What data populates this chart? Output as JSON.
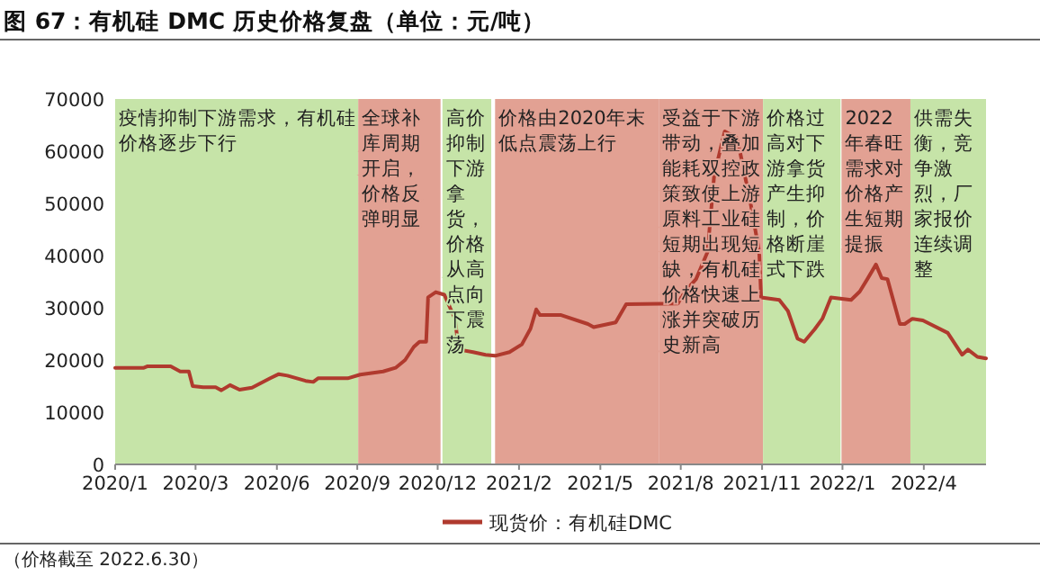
{
  "chart_data": {
    "type": "line",
    "title": "图 67：有机硅 DMC 历史价格复盘（单位：元/吨）",
    "x": [
      "2020-01-02",
      "2020-02-01",
      "2020-02-05",
      "2020-02-29",
      "2020-03-10",
      "2020-03-19",
      "2020-03-23",
      "2020-04-03",
      "2020-04-16",
      "2020-04-22",
      "2020-05-01",
      "2020-05-11",
      "2020-05-24",
      "2020-06-12",
      "2020-06-21",
      "2020-06-30",
      "2020-07-19",
      "2020-07-27",
      "2020-08-01",
      "2020-09-01",
      "2020-09-14",
      "2020-10-08",
      "2020-10-21",
      "2020-10-31",
      "2020-11-09",
      "2020-11-15",
      "2020-11-22",
      "2020-11-24",
      "2020-12-02",
      "2020-12-11",
      "2020-12-17",
      "2020-12-22",
      "2020-12-26",
      "2021-01-10",
      "2021-01-23",
      "2021-02-02",
      "2021-02-17",
      "2021-03-02",
      "2021-03-11",
      "2021-03-17",
      "2021-03-21",
      "2021-04-12",
      "2021-05-10",
      "2021-05-16",
      "2021-06-08",
      "2021-06-19",
      "2021-08-12",
      "2021-08-18",
      "2021-08-31",
      "2021-09-12",
      "2021-09-19",
      "2021-09-30",
      "2021-10-13",
      "2021-10-27",
      "2021-11-05",
      "2021-11-07",
      "2021-11-26",
      "2021-12-05",
      "2021-12-15",
      "2021-12-22",
      "2022-01-02",
      "2022-01-10",
      "2022-01-19",
      "2022-02-09",
      "2022-02-18",
      "2022-02-26",
      "2022-03-07",
      "2022-03-13",
      "2022-03-19",
      "2022-04-01",
      "2022-04-06",
      "2022-04-14",
      "2022-04-25",
      "2022-05-21",
      "2022-06-05",
      "2022-06-11",
      "2022-06-21",
      "2022-06-30"
    ],
    "series": [
      {
        "name": "现货价：有机硅DMC",
        "color": "#b03a2e",
        "values": [
          18500,
          18500,
          18800,
          18800,
          17800,
          17800,
          15000,
          14800,
          14800,
          14200,
          15200,
          14300,
          14700,
          16500,
          17300,
          17000,
          16000,
          15800,
          16500,
          16500,
          17200,
          17800,
          18500,
          20000,
          22500,
          23500,
          23500,
          32000,
          33000,
          32500,
          30000,
          28000,
          22000,
          21500,
          21000,
          20800,
          21500,
          23000,
          26000,
          29700,
          28600,
          28600,
          26900,
          26300,
          27200,
          30700,
          30800,
          32800,
          35500,
          40700,
          55500,
          63800,
          62500,
          50000,
          40700,
          32000,
          31500,
          29400,
          24100,
          23500,
          25900,
          27900,
          32000,
          31500,
          33100,
          35500,
          38300,
          35700,
          35500,
          26900,
          26900,
          27900,
          27600,
          25200,
          21000,
          22000,
          20600,
          20300
        ]
      }
    ],
    "xlim": [
      "2020-01-02",
      "2022-06-30"
    ],
    "xticks": [
      {
        "value": "2020-01-02",
        "label": "2020/1"
      },
      {
        "value": "2020-03-26",
        "label": "2020/3"
      },
      {
        "value": "2020-06-19",
        "label": "2020/6"
      },
      {
        "value": "2020-09-11",
        "label": "2020/9"
      },
      {
        "value": "2020-12-04",
        "label": "2020/12"
      },
      {
        "value": "2021-02-27",
        "label": "2021/2"
      },
      {
        "value": "2021-05-23",
        "label": "2021/5"
      },
      {
        "value": "2021-08-15",
        "label": "2021/8"
      },
      {
        "value": "2021-11-08",
        "label": "2021/11"
      },
      {
        "value": "2022-01-31",
        "label": "2022/1"
      },
      {
        "value": "2022-04-26",
        "label": "2022/4"
      }
    ],
    "ylim": [
      0,
      70000
    ],
    "yticks": [
      0,
      10000,
      20000,
      30000,
      40000,
      50000,
      60000,
      70000
    ],
    "bands": [
      {
        "axis": "x",
        "from": "2020-01-02",
        "to": "2020-09-12",
        "color": "#c6e4a8",
        "label": "疫情抑制下游需求，有机硅价格逐步下行"
      },
      {
        "axis": "x",
        "from": "2020-09-12",
        "to": "2020-12-07",
        "color": "#e2a193",
        "label": "全球补库周期开启，价格反弹明显"
      },
      {
        "axis": "x",
        "from": "2020-12-09",
        "to": "2021-01-29",
        "color": "#c6e4a8",
        "label": "高价抑制下游拿货，价格从高点向下震荡"
      },
      {
        "axis": "x",
        "from": "2021-02-02",
        "to": "2021-07-23",
        "color": "#e2a193",
        "label": "价格由2020年末低点震荡上行"
      },
      {
        "axis": "x",
        "from": "2021-07-23",
        "to": "2021-11-09",
        "color": "#e2a193",
        "label": "受益于下游带动，叠加能耗双控政策致使上游原料工业硅短期出现短缺，有机硅价格快速上涨并突破历史新高"
      },
      {
        "axis": "x",
        "from": "2021-11-09",
        "to": "2022-01-29",
        "color": "#c6e4a8",
        "label": "价格过高对下游拿货产生抑制，价格断崖式下跌"
      },
      {
        "axis": "x",
        "from": "2022-01-30",
        "to": "2022-04-12",
        "color": "#e2a193",
        "label": "2022年春旺需求对价格产生短期提振"
      },
      {
        "axis": "x",
        "from": "2022-04-12",
        "to": "2022-06-30",
        "color": "#c6e4a8",
        "label": "供需失衡，竞争激烈，厂家报价连续调整"
      }
    ],
    "annotations": [
      "（价格截至 2022.6.30）"
    ],
    "grid": false,
    "legend": "bottom"
  }
}
